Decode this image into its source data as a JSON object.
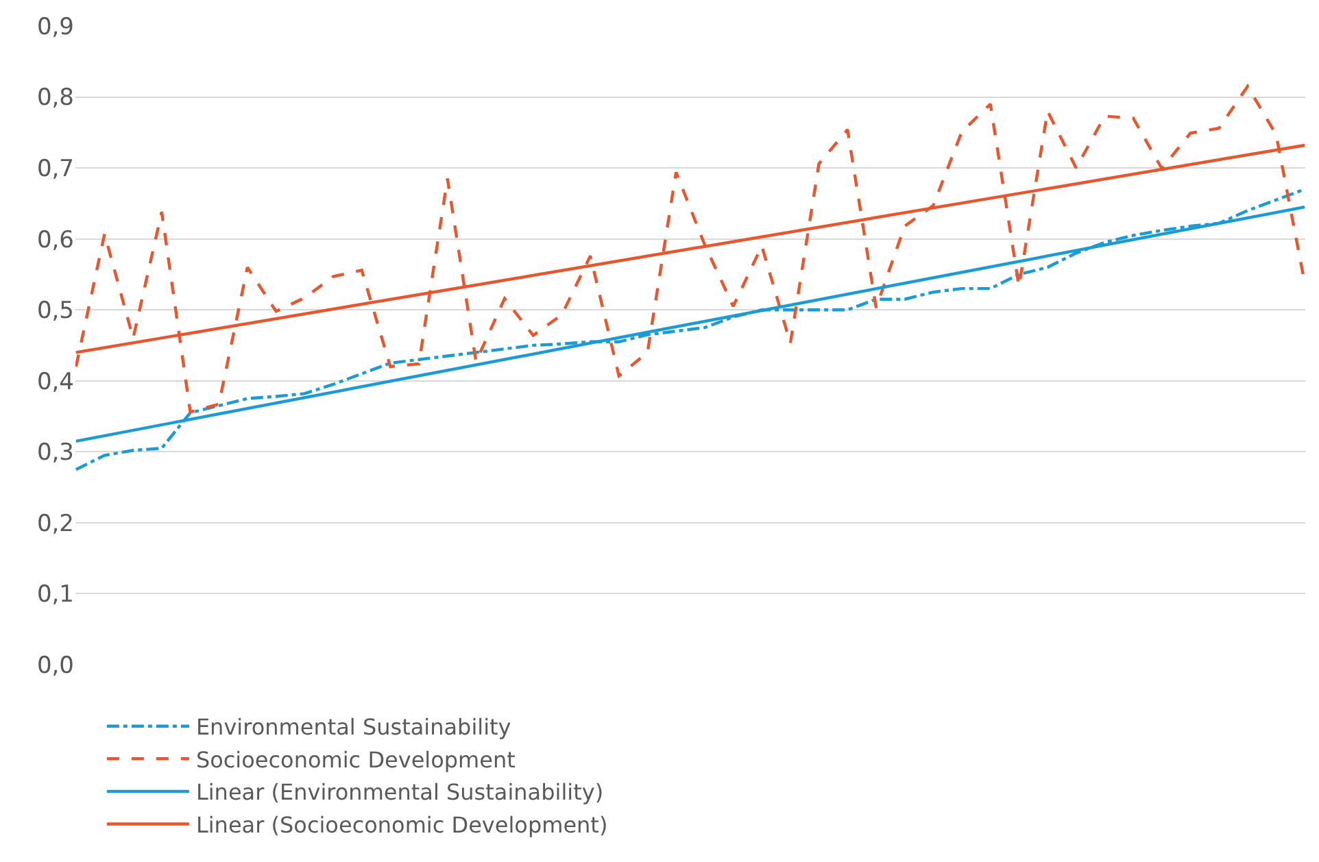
{
  "chart_data": {
    "type": "line",
    "categories": [
      null,
      null,
      null,
      null,
      null,
      null,
      null,
      null,
      null,
      null,
      null,
      null,
      null,
      null,
      null,
      null,
      null,
      null,
      null,
      null,
      null,
      null,
      null,
      null,
      null,
      null,
      null,
      null,
      null,
      null,
      null,
      null,
      null,
      null,
      null,
      null,
      null,
      null,
      null,
      null,
      null,
      null,
      null,
      null
    ],
    "series": [
      {
        "name": "Environmental Sustainability",
        "color": "#1a9ad6",
        "line_style": "dashdot",
        "values": [
          0.275,
          0.295,
          0.302,
          0.305,
          0.355,
          0.365,
          0.375,
          0.378,
          0.382,
          0.395,
          0.41,
          0.425,
          0.43,
          0.435,
          0.44,
          0.445,
          0.45,
          0.452,
          0.455,
          0.455,
          0.465,
          0.47,
          0.475,
          0.49,
          0.5,
          0.5,
          0.5,
          0.5,
          0.515,
          0.515,
          0.525,
          0.53,
          0.53,
          0.55,
          0.56,
          0.58,
          0.595,
          0.605,
          0.612,
          0.618,
          0.622,
          0.64,
          0.655,
          0.67
        ]
      },
      {
        "name": "Socioeconomic Development",
        "color": "#e9552c",
        "line_style": "dashed",
        "values": [
          0.42,
          0.607,
          0.46,
          0.638,
          0.356,
          0.367,
          0.56,
          0.498,
          0.517,
          0.547,
          0.556,
          0.42,
          0.424,
          0.685,
          0.427,
          0.516,
          0.464,
          0.493,
          0.576,
          0.407,
          0.44,
          0.694,
          0.592,
          0.505,
          0.59,
          0.453,
          0.706,
          0.754,
          0.503,
          0.618,
          0.647,
          0.751,
          0.79,
          0.533,
          0.78,
          0.7,
          0.773,
          0.77,
          0.699,
          0.749,
          0.756,
          0.815,
          0.747,
          0.538
        ]
      },
      {
        "name": "Linear (Environmental Sustainability)",
        "color": "#1a9ad6",
        "line_style": "solid",
        "values": [
          0.315,
          null,
          null,
          null,
          null,
          null,
          null,
          null,
          null,
          null,
          null,
          null,
          null,
          null,
          null,
          null,
          null,
          null,
          null,
          null,
          null,
          null,
          null,
          null,
          null,
          null,
          null,
          null,
          null,
          null,
          null,
          null,
          null,
          null,
          null,
          null,
          null,
          null,
          null,
          null,
          null,
          null,
          null,
          0.645
        ]
      },
      {
        "name": "Linear (Socioeconomic Development)",
        "color": "#e9552c",
        "line_style": "solid",
        "values": [
          0.44,
          null,
          null,
          null,
          null,
          null,
          null,
          null,
          null,
          null,
          null,
          null,
          null,
          null,
          null,
          null,
          null,
          null,
          null,
          null,
          null,
          null,
          null,
          null,
          null,
          null,
          null,
          null,
          null,
          null,
          null,
          null,
          null,
          null,
          null,
          null,
          null,
          null,
          null,
          null,
          null,
          null,
          null,
          0.732
        ]
      }
    ],
    "ylim": [
      0,
      0.9
    ],
    "yticks": [
      {
        "value": 0,
        "label": "0,0"
      },
      {
        "value": 0.1,
        "label": "0,1"
      },
      {
        "value": 0.2,
        "label": "0,2"
      },
      {
        "value": 0.3,
        "label": "0,3"
      },
      {
        "value": 0.4,
        "label": "0,4"
      },
      {
        "value": 0.5,
        "label": "0,5"
      },
      {
        "value": 0.6,
        "label": "0,6"
      },
      {
        "value": 0.7,
        "label": "0,7"
      },
      {
        "value": 0.8,
        "label": "0,8"
      },
      {
        "value": 0.9,
        "label": "0,9"
      }
    ],
    "grid": "y",
    "legend": "bottom",
    "marker": "none",
    "tick_labels": "y"
  }
}
